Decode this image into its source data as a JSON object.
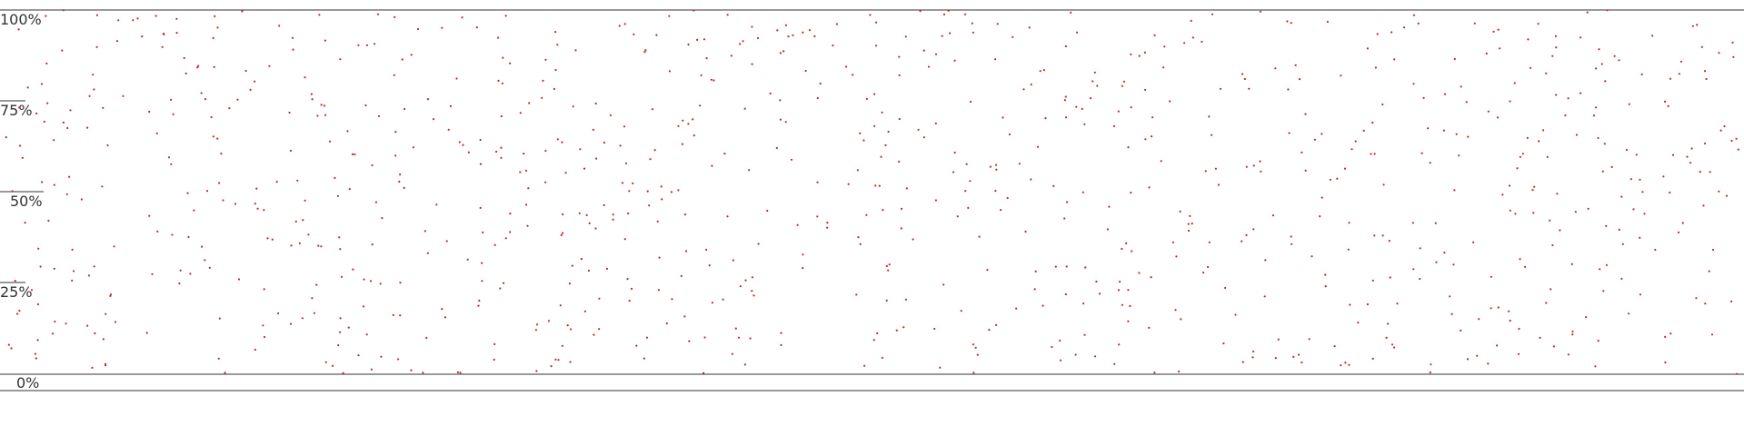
{
  "chart_data": {
    "type": "scatter",
    "title": "",
    "xlabel": "",
    "ylabel": "",
    "ylim": [
      0,
      100
    ],
    "yticks": [
      "0%",
      "25%",
      "50%",
      "75%",
      "100%"
    ],
    "grid": false,
    "legend": "none",
    "colors": {
      "points": "#cc2222",
      "axis": "#333333",
      "background": "#ffffff"
    },
    "series": [
      {
        "points_count": 900
      }
    ]
  }
}
